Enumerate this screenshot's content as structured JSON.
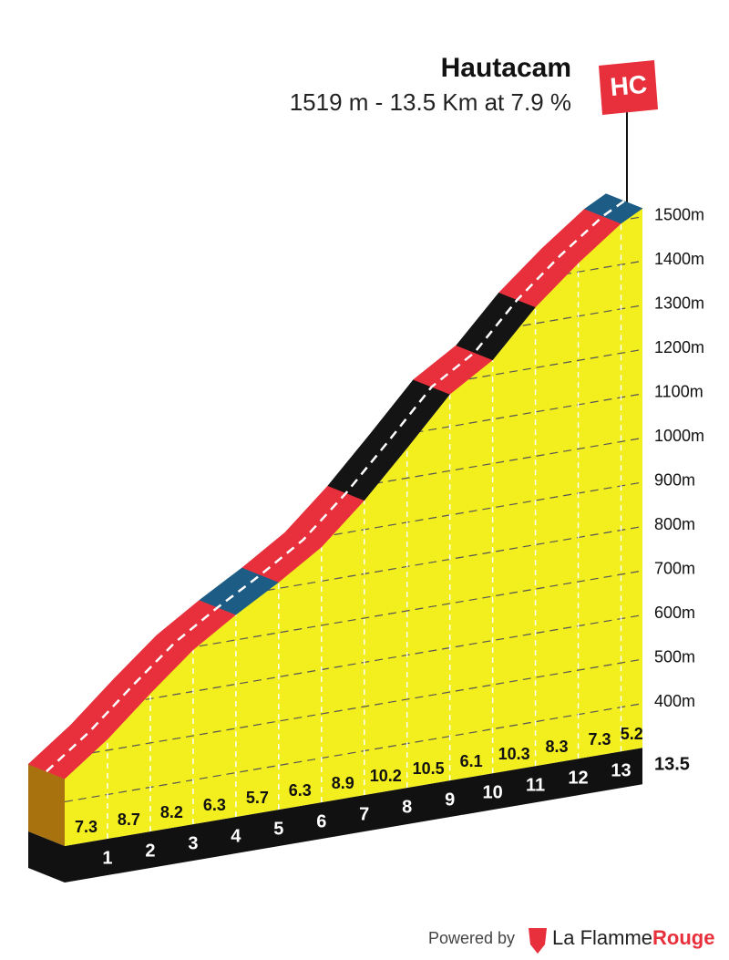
{
  "chart_data": {
    "type": "profile",
    "title": "Hautacam",
    "subtitle": "1519 m - 13.5 Km at 7.9 %",
    "annotation": "HC",
    "x": [
      0,
      1,
      2,
      3,
      4,
      5,
      6,
      7,
      8,
      9,
      10,
      11,
      12,
      13,
      13.5
    ],
    "values": [
      452,
      525,
      612,
      694,
      757,
      814,
      877,
      966,
      1068,
      1173,
      1234,
      1337,
      1420,
      1493,
      1519
    ],
    "gradients": [
      7.3,
      8.7,
      8.2,
      6.3,
      5.7,
      6.3,
      8.9,
      10.2,
      10.5,
      6.1,
      10.3,
      8.3,
      7.3,
      5.2
    ],
    "segment_colors": [
      "#e8303c",
      "#e8303c",
      "#e8303c",
      "#e8303c",
      "#1d5c85",
      "#e8303c",
      "#e8303c",
      "#141414",
      "#141414",
      "#e8303c",
      "#141414",
      "#e8303c",
      "#e8303c",
      "#1d5c85"
    ],
    "color": "#f3ee1e",
    "xlim": [
      0,
      13.5
    ],
    "xticks": [
      1,
      2,
      3,
      4,
      5,
      6,
      7,
      8,
      9,
      10,
      11,
      12,
      13,
      13.5
    ],
    "ylim": [
      300,
      1600
    ],
    "yticks": [
      {
        "value": 400,
        "label": "400m"
      },
      {
        "value": 500,
        "label": "500m"
      },
      {
        "value": 600,
        "label": "600m"
      },
      {
        "value": 700,
        "label": "700m"
      },
      {
        "value": 800,
        "label": "800m"
      },
      {
        "value": 900,
        "label": "900m"
      },
      {
        "value": 1000,
        "label": "1000m"
      },
      {
        "value": 1100,
        "label": "1100m"
      },
      {
        "value": 1200,
        "label": "1200m"
      },
      {
        "value": 1300,
        "label": "1300m"
      },
      {
        "value": 1400,
        "label": "1400m"
      },
      {
        "value": 1500,
        "label": "1500m"
      }
    ],
    "grid": true
  },
  "footer": {
    "powered_by": "Powered by",
    "brand": "La Flamme",
    "brand_accent": "Rouge"
  }
}
